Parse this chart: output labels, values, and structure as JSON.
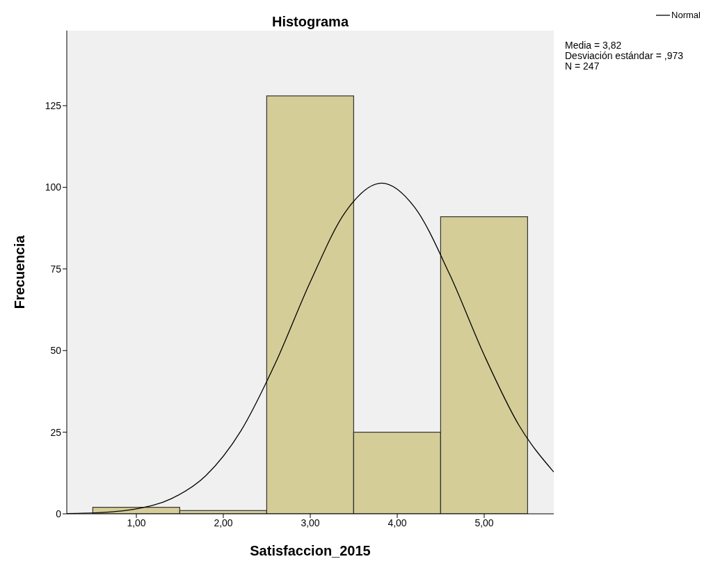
{
  "chart_data": {
    "type": "histogram",
    "title": "Histograma",
    "xlabel": "Satisfaccion_2015",
    "ylabel": "Frecuencia",
    "bins": [
      0.5,
      1.5,
      2.5,
      3.5,
      4.5,
      5.5
    ],
    "series": [
      {
        "color": "#d4cd98",
        "values": [
          2,
          1,
          128,
          25,
          91
        ]
      },
      {
        "type": "line",
        "name": "Normal",
        "color": "#000000",
        "x": [
          0.2,
          0.6,
          1.0,
          1.4,
          1.8,
          2.2,
          2.6,
          3.0,
          3.4,
          3.82,
          4.2,
          4.6,
          5.0,
          5.4,
          5.8
        ],
        "values": [
          0.1,
          0.4,
          1.5,
          4.6,
          11.7,
          25.3,
          46.2,
          71.0,
          92.3,
          101.3,
          93.9,
          73.5,
          48.6,
          27.1,
          12.8
        ]
      }
    ],
    "xlim": [
      0.2,
      5.8
    ],
    "ylim": [
      0,
      148
    ],
    "xticks": [
      {
        "value": 1,
        "label": "1,00"
      },
      {
        "value": 2,
        "label": "2,00"
      },
      {
        "value": 3,
        "label": "3,00"
      },
      {
        "value": 4,
        "label": "4,00"
      },
      {
        "value": 5,
        "label": "5,00"
      }
    ],
    "yticks": [
      0,
      25,
      50,
      75,
      100,
      125
    ],
    "legend": "top right",
    "annotations": [
      "Media = 3,82",
      "Desviación estándar = ,973",
      "N = 247"
    ]
  }
}
